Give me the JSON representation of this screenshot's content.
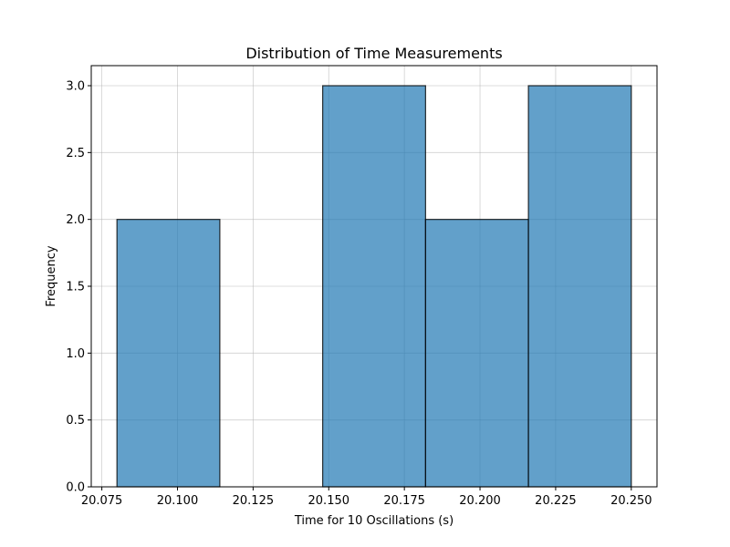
{
  "chart_data": {
    "type": "bar",
    "title": "Distribution of Time Measurements",
    "xlabel": "Time for 10 Oscillations (s)",
    "ylabel": "Frequency",
    "xlim": [
      20.0715,
      20.2585
    ],
    "ylim": [
      0,
      3.15
    ],
    "grid": true,
    "bar_color": "#1f77b4",
    "bar_opacity": 0.7,
    "edge_color": "#000000",
    "bins": [
      {
        "x0": 20.08,
        "x1": 20.114,
        "value": 2
      },
      {
        "x0": 20.114,
        "x1": 20.148,
        "value": 0
      },
      {
        "x0": 20.148,
        "x1": 20.182,
        "value": 3
      },
      {
        "x0": 20.182,
        "x1": 20.216,
        "value": 2
      },
      {
        "x0": 20.216,
        "x1": 20.25,
        "value": 3
      }
    ],
    "x_ticks": [
      20.075,
      20.1,
      20.125,
      20.15,
      20.175,
      20.2,
      20.225,
      20.25
    ],
    "x_tick_labels": [
      "20.075",
      "20.100",
      "20.125",
      "20.150",
      "20.175",
      "20.200",
      "20.225",
      "20.250"
    ],
    "y_ticks": [
      0,
      0.5,
      1.0,
      1.5,
      2.0,
      2.5,
      3.0
    ],
    "y_tick_labels": [
      "0.0",
      "0.5",
      "1.0",
      "1.5",
      "2.0",
      "2.5",
      "3.0"
    ]
  }
}
